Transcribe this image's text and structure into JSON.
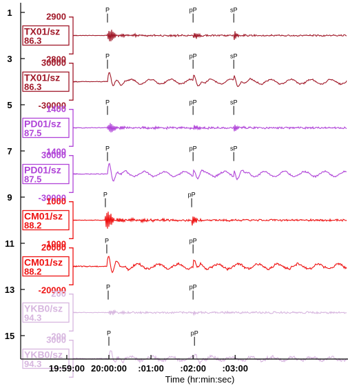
{
  "chart_data": {
    "type": "line",
    "xlabel": "Time (hr:min:sec)",
    "x_ticks": [
      "19:59:00",
      "20:00:00",
      ":01:00",
      ":02:00",
      ":03:00"
    ],
    "x_tick_seconds": [
      -60,
      0,
      60,
      120,
      180
    ],
    "x_range_seconds": [
      -78,
      210
    ],
    "y_ticks": [
      "1",
      "3",
      "5",
      "7",
      "9",
      "11",
      "13",
      "15"
    ],
    "y_tick_values": [
      1,
      3,
      5,
      7,
      9,
      11,
      13,
      15
    ],
    "y_range": [
      0.5,
      15.3
    ],
    "colors": {
      "TX01": "#a01828",
      "PD01": "#b044d8",
      "CM01": "#ee1111",
      "YKB0": "#d7b6df"
    },
    "traces": [
      {
        "station": "TX01/sz",
        "distance": "86.3",
        "color_key": "TX01",
        "baseline": 2,
        "scale_top": "2900",
        "scale_bottom": "-2800",
        "style": "short",
        "amp": 0.5,
        "noise": 0.04,
        "phases": [
          {
            "label": "P",
            "t": -2
          },
          {
            "label": "pP",
            "t": 120
          },
          {
            "label": "sP",
            "t": 178
          }
        ]
      },
      {
        "station": "TX01/sz",
        "distance": "86.3",
        "color_key": "TX01",
        "baseline": 4,
        "scale_top": "30000",
        "scale_bottom": "-30000",
        "style": "long",
        "amp": 0.55,
        "noise": 0.05,
        "phases": [
          {
            "label": "P",
            "t": -2
          },
          {
            "label": "pP",
            "t": 120
          },
          {
            "label": "sP",
            "t": 178
          }
        ]
      },
      {
        "station": "PD01/sz",
        "distance": "87.5",
        "color_key": "PD01",
        "baseline": 6,
        "scale_top": "1400",
        "scale_bottom": "-1400",
        "style": "short",
        "amp": 0.4,
        "noise": 0.05,
        "phases": [
          {
            "label": "P",
            "t": -2
          },
          {
            "label": "pP",
            "t": 120
          },
          {
            "label": "sP",
            "t": 178
          }
        ]
      },
      {
        "station": "PD01/sz",
        "distance": "87.5",
        "color_key": "PD01",
        "baseline": 8,
        "scale_top": "30000",
        "scale_bottom": "-30000",
        "style": "long",
        "amp": 0.6,
        "noise": 0.06,
        "phases": [
          {
            "label": "P",
            "t": -2
          },
          {
            "label": "pP",
            "t": 120
          },
          {
            "label": "sP",
            "t": 178
          }
        ]
      },
      {
        "station": "CM01/sz",
        "distance": "88.2",
        "color_key": "CM01",
        "baseline": 10,
        "scale_top": "1000",
        "scale_bottom": "-1000",
        "style": "short",
        "amp": 0.7,
        "noise": 0.05,
        "phases": [
          {
            "label": "P",
            "t": -5
          },
          {
            "label": "pP",
            "t": 118
          }
        ]
      },
      {
        "station": "CM01/sz",
        "distance": "88.2",
        "color_key": "CM01",
        "baseline": 12,
        "scale_top": "20000",
        "scale_bottom": "-20000",
        "style": "long",
        "amp": 0.6,
        "noise": 0.09,
        "phases": [
          {
            "label": "P",
            "t": -3
          },
          {
            "label": "pP",
            "t": 120
          }
        ]
      },
      {
        "station": "YKB0/sz",
        "distance": "94.3",
        "color_key": "YKB0",
        "baseline": 14,
        "scale_top": "200",
        "scale_bottom": "-200",
        "style": "short",
        "amp": 0.2,
        "noise": 0.05,
        "phases": [
          {
            "label": "P",
            "t": -1
          },
          {
            "label": "pP",
            "t": 120
          }
        ]
      },
      {
        "station": "YKB0/sz",
        "distance": "94.3",
        "color_key": "YKB0",
        "baseline": 16,
        "scale_top": "3000",
        "scale_bottom": "",
        "style": "long",
        "amp": 0.45,
        "noise": 0.12,
        "phases": [
          {
            "label": "P",
            "t": 0
          },
          {
            "label": "pP",
            "t": 122
          }
        ]
      }
    ]
  }
}
